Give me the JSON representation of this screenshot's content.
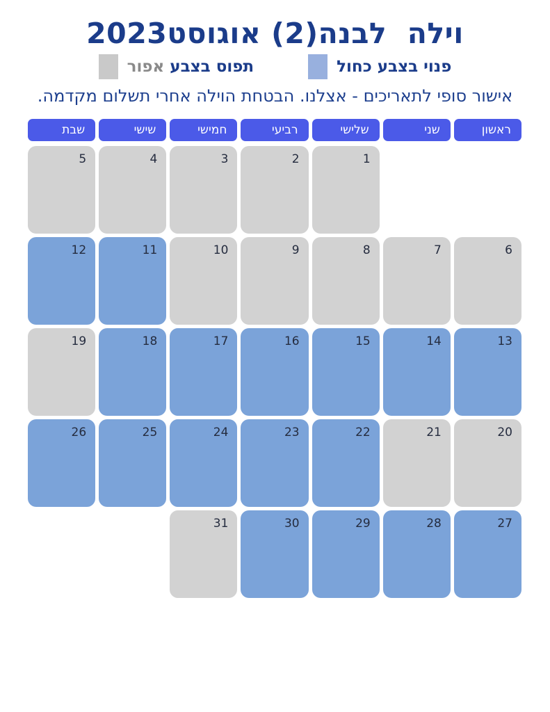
{
  "title": "וילה  לבנה(2) אוגוסט2023",
  "note": "אישור סופי לתאריכים - אצלנו. הבטחת הוילה אחרי תשלום מקדמה.",
  "legend": {
    "free_label": "פנוי בצבע כחול",
    "occupied_prefix": "תפוס בצבע ",
    "occupied_gray_word": "אפור",
    "free_swatch": "free-color-swatch",
    "occupied_swatch": "occupied-color-swatch"
  },
  "weekdays": [
    "ראשון",
    "שני",
    "שלישי",
    "רביעי",
    "חמישי",
    "שישי",
    "שבת"
  ],
  "calendar": {
    "weeks": [
      [
        null,
        null,
        {
          "day": "1",
          "status": "occupied"
        },
        {
          "day": "2",
          "status": "occupied"
        },
        {
          "day": "3",
          "status": "occupied"
        },
        {
          "day": "4",
          "status": "occupied"
        },
        {
          "day": "5",
          "status": "occupied"
        }
      ],
      [
        {
          "day": "6",
          "status": "occupied"
        },
        {
          "day": "7",
          "status": "occupied"
        },
        {
          "day": "8",
          "status": "occupied"
        },
        {
          "day": "9",
          "status": "occupied"
        },
        {
          "day": "10",
          "status": "occupied"
        },
        {
          "day": "11",
          "status": "free"
        },
        {
          "day": "12",
          "status": "free"
        }
      ],
      [
        {
          "day": "13",
          "status": "free"
        },
        {
          "day": "14",
          "status": "free"
        },
        {
          "day": "15",
          "status": "free"
        },
        {
          "day": "16",
          "status": "free"
        },
        {
          "day": "17",
          "status": "free"
        },
        {
          "day": "18",
          "status": "free"
        },
        {
          "day": "19",
          "status": "occupied"
        }
      ],
      [
        {
          "day": "20",
          "status": "occupied"
        },
        {
          "day": "21",
          "status": "occupied"
        },
        {
          "day": "22",
          "status": "free"
        },
        {
          "day": "23",
          "status": "free"
        },
        {
          "day": "24",
          "status": "free"
        },
        {
          "day": "25",
          "status": "free"
        },
        {
          "day": "26",
          "status": "free"
        }
      ],
      [
        {
          "day": "27",
          "status": "free"
        },
        {
          "day": "28",
          "status": "free"
        },
        {
          "day": "29",
          "status": "free"
        },
        {
          "day": "30",
          "status": "free"
        },
        {
          "day": "31",
          "status": "occupied"
        },
        null,
        null
      ]
    ]
  },
  "colors": {
    "free_cell": "#7ba3d9",
    "occupied_cell": "#d2d2d2",
    "weekday_header": "#4b5ae8",
    "title_text": "#1b3c8a",
    "gray_word": "#8a8a8a",
    "legend_free_swatch": "#98b0de",
    "legend_occupied_swatch": "#c9c9c9"
  }
}
